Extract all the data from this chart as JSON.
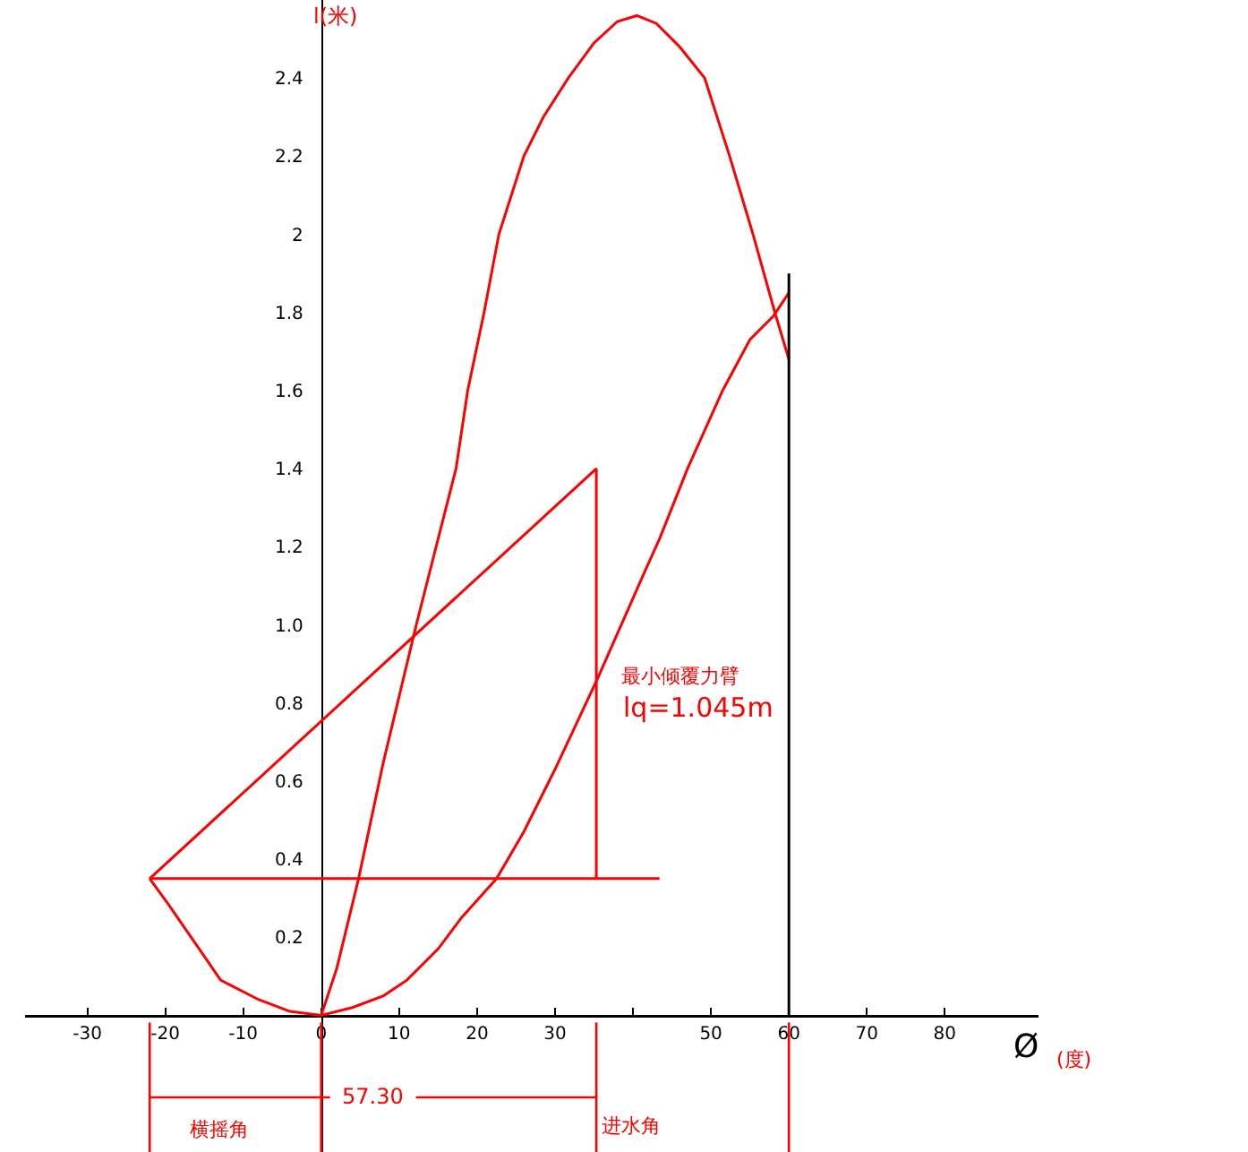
{
  "chart_data": {
    "type": "line",
    "xlabel": "Ø",
    "ylabel": "l(米)",
    "xlim": [
      -38,
      92
    ],
    "ylim": [
      -0.35,
      2.6
    ],
    "xticks": [
      -30,
      -20,
      -10,
      0,
      10,
      20,
      30,
      {
        "value": 40,
        "label": null
      },
      50,
      60,
      70,
      80
    ],
    "yticks": [
      0.2,
      0.4,
      0.6,
      0.8,
      "1.0",
      1.2,
      1.4,
      1.6,
      1.8,
      2,
      2.2,
      2.4
    ],
    "grid": false,
    "marker": "none",
    "line_style": "solid",
    "series": [
      {
        "color": "#ff0000",
        "x": [
          0,
          2,
          4.8,
          8,
          12.2,
          15,
          17.3,
          18.8,
          20.9,
          22.8,
          26,
          28.5,
          31.7,
          35,
          38,
          40.5,
          43,
          46,
          49.2,
          52.4,
          55.4,
          58.2,
          60
        ],
        "values": [
          0,
          0.12,
          0.35,
          0.65,
          1.0,
          1.22,
          1.4,
          1.6,
          1.8,
          2.0,
          2.2,
          2.3,
          2.4,
          2.49,
          2.545,
          2.56,
          2.54,
          2.48,
          2.4,
          2.2,
          2.0,
          1.8,
          1.68
        ]
      },
      {
        "color": "#ff0000",
        "x": [
          -22,
          -19.8,
          -16,
          -12.9,
          -8,
          -4,
          0,
          4,
          8,
          11,
          15,
          18,
          22.5,
          26,
          30,
          35.4,
          41.6,
          43.4,
          47,
          51.5,
          55,
          58,
          60
        ],
        "values": [
          0.35,
          0.29,
          0.18,
          0.09,
          0.04,
          0.01,
          0,
          0.02,
          0.05,
          0.09,
          0.17,
          0.25,
          0.35,
          0.47,
          0.63,
          0.86,
          1.14,
          1.22,
          1.4,
          1.6,
          1.73,
          1.79,
          1.85
        ]
      },
      {
        "color": "#ff0000",
        "x": [
          43.4,
          -22,
          35.3,
          35.3
        ],
        "values": [
          0.35,
          0.35,
          1.4,
          0.35
        ]
      },
      {
        "color": "#000000",
        "x": [
          60,
          60,
          60
        ],
        "values": [
          0,
          0.95,
          1.9
        ]
      }
    ],
    "ref_lines": [
      {
        "axis": "x",
        "value": -22,
        "color": "#ff0000"
      },
      {
        "axis": "x",
        "value": 0,
        "color": "#ff0000"
      },
      {
        "axis": "x",
        "value": 35.3,
        "color": "#ff0000"
      },
      {
        "axis": "x",
        "value": 60,
        "color": "#ff0000"
      }
    ],
    "annotations": [
      {
        "text": "57.30",
        "x": 6.65,
        "y": -0.21
      },
      "横摇角",
      "进水角",
      "最小倾覆力臂",
      "lq=1.045m",
      "(度)"
    ]
  }
}
